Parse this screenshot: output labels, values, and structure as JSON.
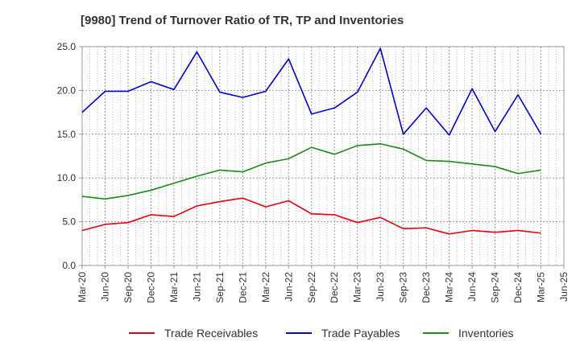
{
  "chart_data": {
    "type": "line",
    "title": "[9980]  Trend of Turnover Ratio of TR, TP and Inventories",
    "xlabel": "",
    "ylabel": "",
    "ylim": [
      0,
      25
    ],
    "yticks": [
      "0.0",
      "5.0",
      "10.0",
      "15.0",
      "20.0",
      "25.0"
    ],
    "xticks": [
      "Mar-20",
      "Jun-20",
      "Sep-20",
      "Dec-20",
      "Mar-21",
      "Jun-21",
      "Sep-21",
      "Dec-21",
      "Mar-22",
      "Jun-22",
      "Sep-22",
      "Dec-22",
      "Mar-23",
      "Jun-23",
      "Sep-23",
      "Dec-23",
      "Mar-24",
      "Jun-24",
      "Sep-24",
      "Dec-24",
      "Mar-25",
      "Jun-25"
    ],
    "grid": true,
    "legend_position": "bottom",
    "x": [
      "Mar-20",
      "Jun-20",
      "Sep-20",
      "Dec-20",
      "Mar-21",
      "Jun-21",
      "Sep-21",
      "Dec-21",
      "Mar-22",
      "Jun-22",
      "Sep-22",
      "Dec-22",
      "Mar-23",
      "Jun-23",
      "Sep-23",
      "Dec-23",
      "Mar-24",
      "Jun-24",
      "Sep-24",
      "Dec-24",
      "Mar-25"
    ],
    "series": [
      {
        "name": "Trade Receivables",
        "color": "#e8000b",
        "values": [
          4.0,
          4.7,
          4.9,
          5.8,
          5.6,
          6.8,
          7.3,
          7.7,
          6.7,
          7.4,
          5.9,
          5.8,
          4.9,
          5.5,
          4.2,
          4.3,
          3.6,
          4.0,
          3.8,
          4.0,
          3.7
        ]
      },
      {
        "name": "Trade Payables",
        "color": "#0000e0",
        "values": [
          17.5,
          19.9,
          19.9,
          21.0,
          20.1,
          24.4,
          19.8,
          19.2,
          19.9,
          23.6,
          17.3,
          18.0,
          19.8,
          24.8,
          15.0,
          18.0,
          14.9,
          20.2,
          15.3,
          19.5,
          15.0
        ]
      },
      {
        "name": "Inventories",
        "color": "#1a8c1a",
        "values": [
          7.9,
          7.6,
          8.0,
          8.6,
          9.4,
          10.2,
          10.9,
          10.7,
          11.7,
          12.2,
          13.5,
          12.7,
          13.7,
          13.9,
          13.3,
          12.0,
          11.9,
          11.6,
          11.3,
          10.5,
          10.9
        ]
      }
    ]
  }
}
